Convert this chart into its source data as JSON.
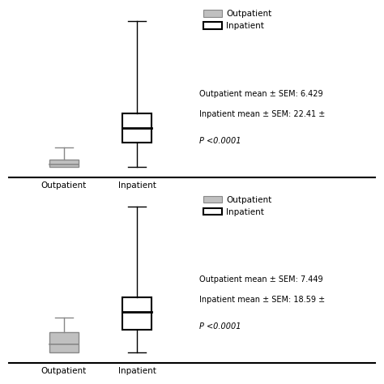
{
  "top_plot": {
    "outpatient": {
      "whisker_low": 0,
      "q1": 0,
      "median": 1,
      "q3": 3,
      "whisker_high": 8,
      "color": "#aaaaaa"
    },
    "inpatient": {
      "whisker_low": 0,
      "q1": 10,
      "median": 16,
      "q3": 22,
      "whisker_high": 60,
      "color": "#000000"
    },
    "pvalue": "P <0.0001",
    "legend_out_label": "Outpatient",
    "legend_in_label": "Inpatient",
    "annotation1": "Outpatient mean ± SEM: 6.429",
    "annotation2": "Inpatient mean ± SEM: 22.41 ±"
  },
  "bottom_plot": {
    "outpatient": {
      "whisker_low": 0,
      "q1": 0,
      "median": 3,
      "q3": 7,
      "whisker_high": 12,
      "color": "#aaaaaa"
    },
    "inpatient": {
      "whisker_low": 0,
      "q1": 8,
      "median": 14,
      "q3": 19,
      "whisker_high": 50,
      "color": "#000000"
    },
    "pvalue": "P <0.0001",
    "legend_out_label": "Outpatient",
    "legend_in_label": "Inpatient",
    "annotation1": "Outpatient mean ± SEM: 7.449",
    "annotation2": "Inpatient mean ± SEM: 18.59 ±"
  },
  "bg_color": "#ffffff",
  "font_size": 7.5,
  "x_labels": [
    "Outpatient",
    "Inpatient"
  ]
}
